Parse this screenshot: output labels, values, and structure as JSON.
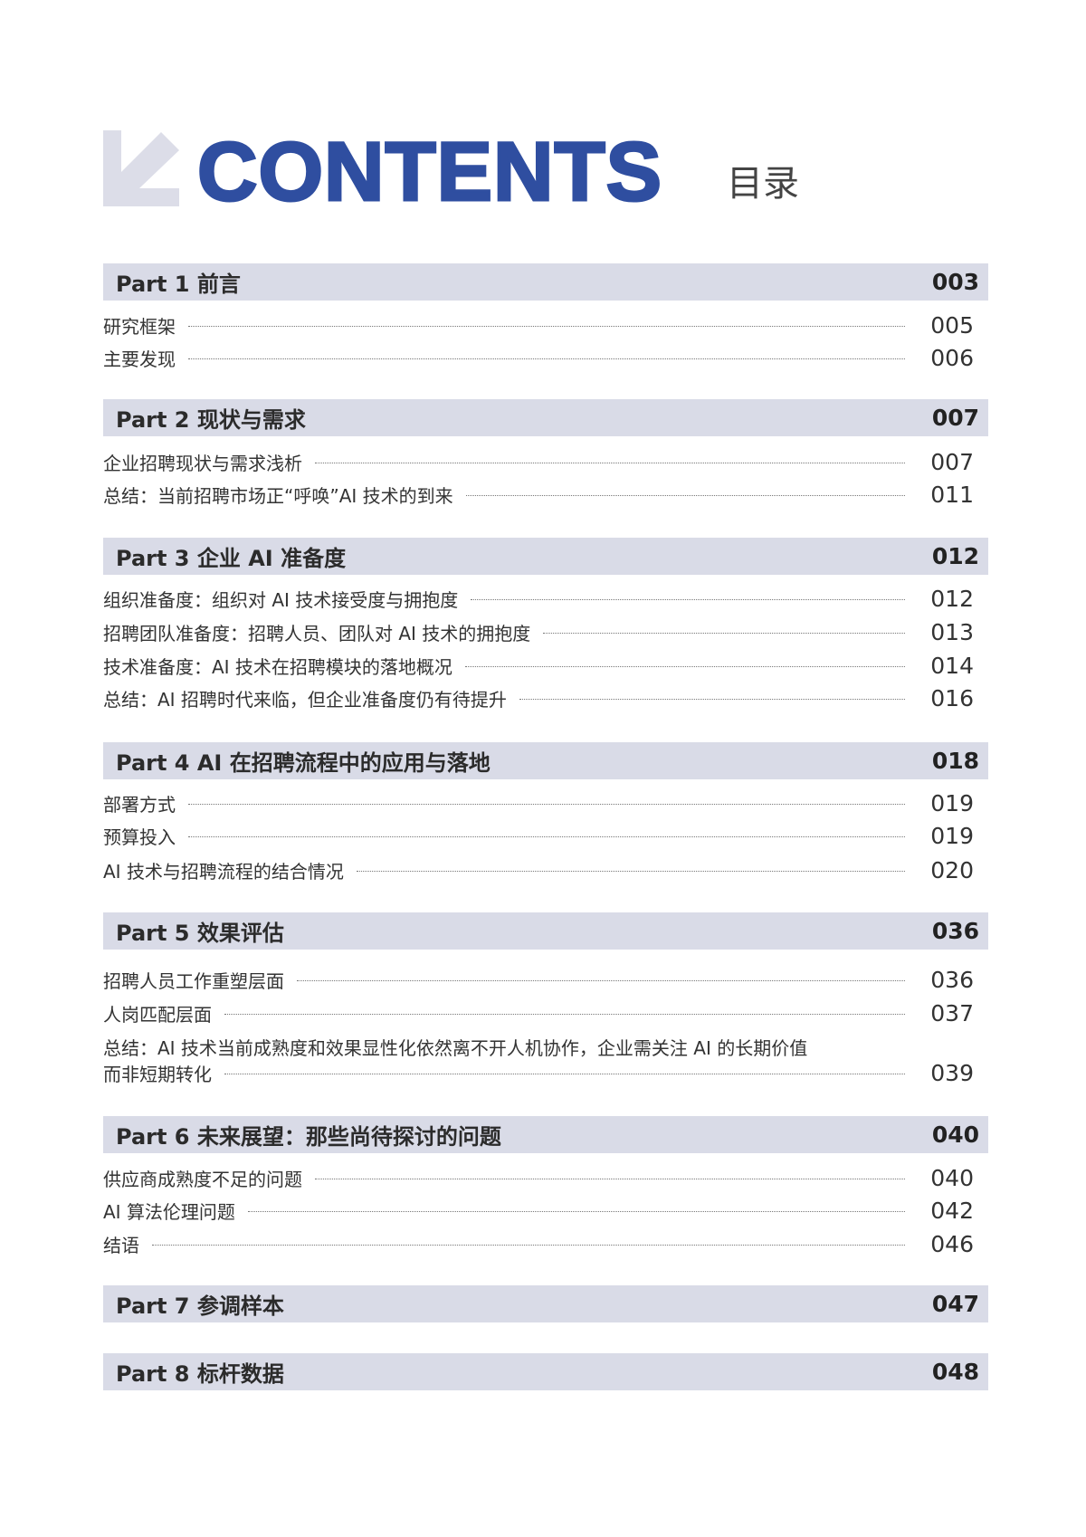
{
  "header": {
    "title": "CONTENTS",
    "subtitle": "目录",
    "arrow_icon": "arrow-down-left-icon",
    "title_color": "#2f4ea0",
    "bar_color": "#d9dbe7"
  },
  "parts": [
    {
      "title": "Part 1 前言",
      "page": "003",
      "items": [
        {
          "title": "研究框架",
          "page": "005"
        },
        {
          "title": "主要发现",
          "page": "006"
        }
      ]
    },
    {
      "title": "Part 2 现状与需求",
      "page": "007",
      "items": [
        {
          "title": "企业招聘现状与需求浅析",
          "page": "007"
        },
        {
          "title": "总结：当前招聘市场正“呼唤”AI 技术的到来",
          "page": "011"
        }
      ]
    },
    {
      "title": "Part 3 企业 AI 准备度",
      "page": "012",
      "items": [
        {
          "title": "组织准备度：组织对 AI 技术接受度与拥抱度",
          "page": "012"
        },
        {
          "title": "招聘团队准备度：招聘人员、团队对 AI 技术的拥抱度",
          "page": "013"
        },
        {
          "title": "技术准备度：AI 技术在招聘模块的落地概况",
          "page": "014"
        },
        {
          "title": "总结：AI 招聘时代来临，但企业准备度仍有待提升",
          "page": "016"
        }
      ]
    },
    {
      "title": "Part 4 AI 在招聘流程中的应用与落地",
      "page": "018",
      "items": [
        {
          "title": "部署方式",
          "page": "019"
        },
        {
          "title": "预算投入",
          "page": "019"
        },
        {
          "title": "AI 技术与招聘流程的结合情况",
          "page": "020"
        }
      ]
    },
    {
      "title": "Part 5 效果评估",
      "page": "036",
      "items": [
        {
          "title": "招聘人员工作重塑层面",
          "page": "036"
        },
        {
          "title": "人岗匹配层面",
          "page": "037"
        },
        {
          "title_line1": "总结：AI 技术当前成熟度和效果显性化依然离不开人机协作，企业需关注 AI 的长期价值",
          "title": "而非短期转化",
          "page": "039"
        }
      ]
    },
    {
      "title": "Part 6 未来展望：那些尚待探讨的问题",
      "page": "040",
      "items": [
        {
          "title": "供应商成熟度不足的问题",
          "page": "040"
        },
        {
          "title": "AI 算法伦理问题",
          "page": "042"
        },
        {
          "title": "结语",
          "page": "046"
        }
      ]
    },
    {
      "title": "Part 7 参调样本",
      "page": "047",
      "items": []
    },
    {
      "title": "Part 8 标杆数据",
      "page": "048",
      "items": []
    }
  ]
}
